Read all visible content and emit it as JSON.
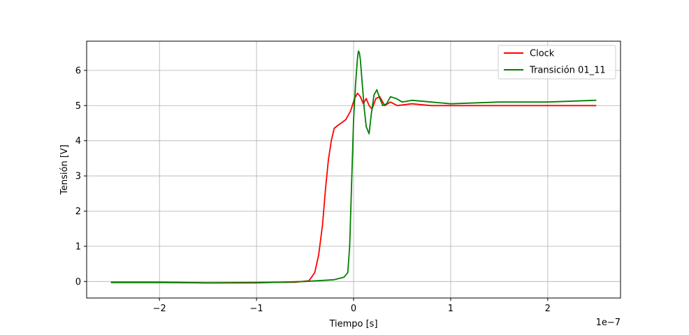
{
  "chart_data": {
    "type": "line",
    "xlabel": "Tiempo [s]",
    "ylabel": "Tensión [V]",
    "x_offset_label": "1e−7",
    "xlim": [
      -2.75e-07,
      2.75e-07
    ],
    "ylim": [
      -0.47,
      6.83
    ],
    "x_ticks": [
      -2e-07,
      -1e-07,
      0,
      1e-07,
      2e-07
    ],
    "x_tick_labels": [
      "−2",
      "−1",
      "0",
      "1",
      "2"
    ],
    "y_ticks": [
      0,
      1,
      2,
      3,
      4,
      5,
      6
    ],
    "y_tick_labels": [
      "0",
      "1",
      "2",
      "3",
      "4",
      "5",
      "6"
    ],
    "grid": true,
    "legend_position": "upper right",
    "series": [
      {
        "name": "Clock",
        "color": "#ff0000",
        "x": [
          -2.5e-07,
          -2e-07,
          -1.5e-07,
          -1e-07,
          -6e-08,
          -4.6e-08,
          -4e-08,
          -3.6e-08,
          -3.2e-08,
          -2.9e-08,
          -2.6e-08,
          -2.3e-08,
          -2e-08,
          -1.7e-08,
          -1.3e-08,
          -8e-09,
          -3e-09,
          1e-09,
          4e-09,
          7e-09,
          1e-08,
          1.3e-08,
          1.6e-08,
          1.9e-08,
          2.3e-08,
          2.7e-08,
          3.2e-08,
          3.8e-08,
          4.5e-08,
          6e-08,
          8e-08,
          1e-07,
          1.5e-07,
          2e-07,
          2.5e-07
        ],
        "y": [
          -0.02,
          -0.02,
          -0.04,
          -0.03,
          -0.02,
          0.02,
          0.25,
          0.75,
          1.6,
          2.6,
          3.45,
          4.0,
          4.35,
          4.42,
          4.5,
          4.6,
          4.85,
          5.2,
          5.35,
          5.25,
          5.05,
          5.2,
          5.0,
          4.9,
          5.2,
          5.25,
          5.0,
          5.1,
          5.0,
          5.05,
          5.0,
          5.0,
          5.0,
          5.0,
          5.0
        ]
      },
      {
        "name": "Transición 01_11",
        "color": "#008000",
        "x": [
          -2.5e-07,
          -2e-07,
          -1.5e-07,
          -1e-07,
          -5e-08,
          -2e-08,
          -1e-08,
          -6e-09,
          -4e-09,
          -2e-09,
          0.0,
          2e-09,
          4e-09,
          5e-09,
          6e-09,
          7e-09,
          9e-09,
          1.1e-08,
          1.3e-08,
          1.6e-08,
          1.8e-08,
          2.1e-08,
          2.4e-08,
          2.7e-08,
          3e-08,
          3.4e-08,
          3.8e-08,
          4.4e-08,
          5e-08,
          6e-08,
          8e-08,
          1e-07,
          1.5e-07,
          2e-07,
          2.5e-07
        ],
        "y": [
          -0.03,
          -0.03,
          -0.04,
          -0.04,
          0.0,
          0.05,
          0.12,
          0.25,
          1.0,
          2.8,
          4.6,
          5.6,
          6.35,
          6.55,
          6.5,
          6.3,
          5.6,
          4.9,
          4.4,
          4.2,
          4.7,
          5.3,
          5.45,
          5.2,
          5.0,
          5.05,
          5.25,
          5.2,
          5.1,
          5.15,
          5.1,
          5.05,
          5.1,
          5.1,
          5.15
        ]
      }
    ]
  }
}
